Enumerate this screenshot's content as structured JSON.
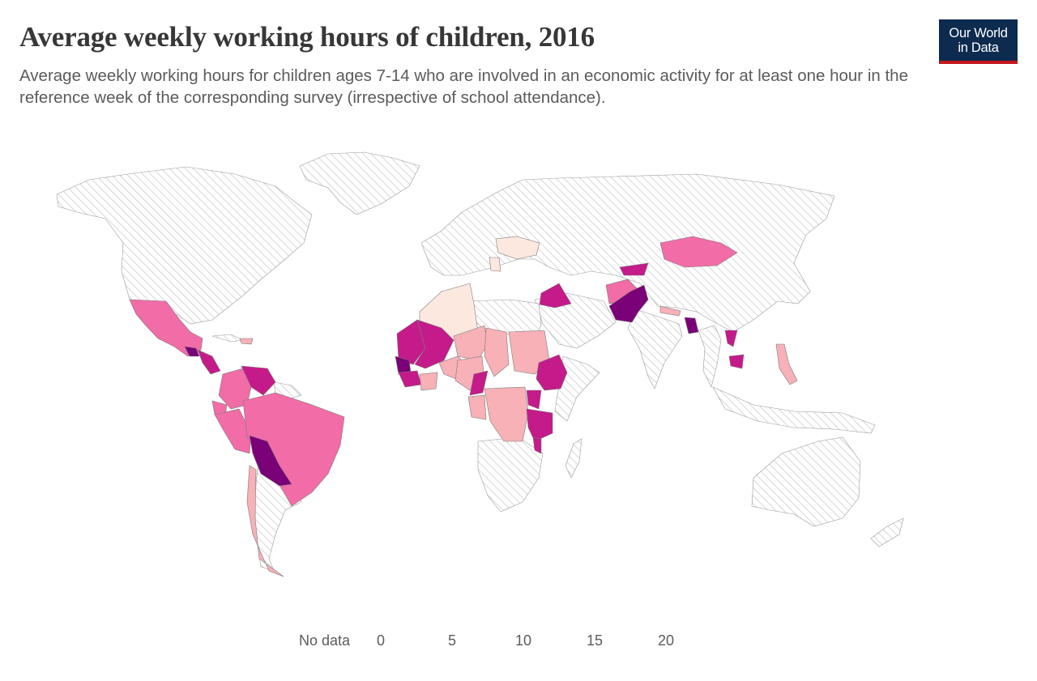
{
  "header": {
    "title": "Average weekly working hours of children, 2016",
    "subtitle": "Average weekly working hours for children ages 7-14 who are involved in an economic activity for at least one hour in the reference week of the corresponding survey (irrespective of school attendance)."
  },
  "logo": {
    "line1": "Our World",
    "line2": "in Data"
  },
  "colors": {
    "no_data_hatch": "#cfcfcf",
    "bin_0_5": "#fde8e0",
    "bin_5_10": "#f7b1b7",
    "bin_10_15": "#f26ca7",
    "bin_15_20": "#c51a8a",
    "bin_20_plus": "#7a0177",
    "border": "#7a7a7a"
  },
  "legend": {
    "no_data_label": "No data",
    "ticks": [
      "0",
      "5",
      "10",
      "15",
      "20"
    ]
  },
  "map_data": {
    "unit": "hours per week",
    "bins": [
      {
        "min": 0,
        "max": 5,
        "color": "#fde8e0"
      },
      {
        "min": 5,
        "max": 10,
        "color": "#f7b1b7"
      },
      {
        "min": 10,
        "max": 15,
        "color": "#f26ca7"
      },
      {
        "min": 15,
        "max": 20,
        "color": "#c51a8a"
      },
      {
        "min": 20,
        "max": null,
        "color": "#7a0177"
      }
    ]
  }
}
